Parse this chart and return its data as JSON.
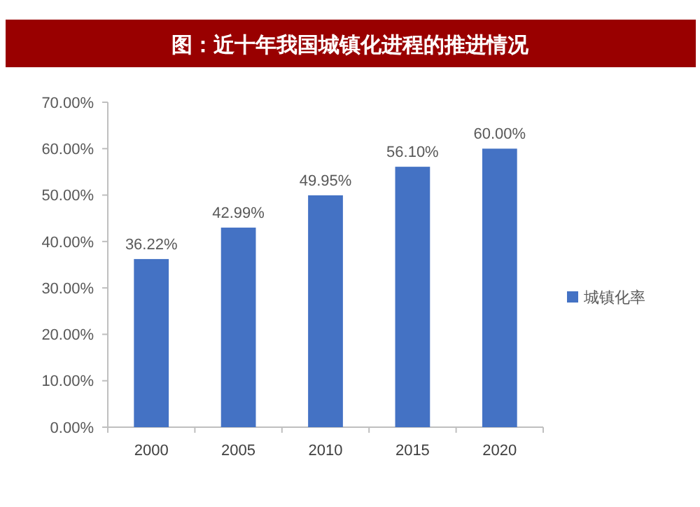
{
  "chart_data": {
    "type": "bar",
    "title": "图：近十年我国城镇化进程的推进情况",
    "categories": [
      "2000",
      "2005",
      "2010",
      "2015",
      "2020"
    ],
    "series": [
      {
        "name": "城镇化率",
        "color": "#4472c4",
        "values": [
          36.22,
          42.99,
          49.95,
          56.1,
          60.0
        ],
        "value_labels": [
          "36.22%",
          "42.99%",
          "49.95%",
          "56.10%",
          "60.00%"
        ]
      }
    ],
    "ylim": [
      0,
      70
    ],
    "yticks": [
      {
        "value": 0,
        "label": "0.00%"
      },
      {
        "value": 10,
        "label": "10.00%"
      },
      {
        "value": 20,
        "label": "20.00%"
      },
      {
        "value": 30,
        "label": "30.00%"
      },
      {
        "value": 40,
        "label": "40.00%"
      },
      {
        "value": 50,
        "label": "50.00%"
      },
      {
        "value": 60,
        "label": "60.00%"
      },
      {
        "value": 70,
        "label": "70.00%"
      }
    ],
    "grid": false,
    "legend": "right"
  }
}
